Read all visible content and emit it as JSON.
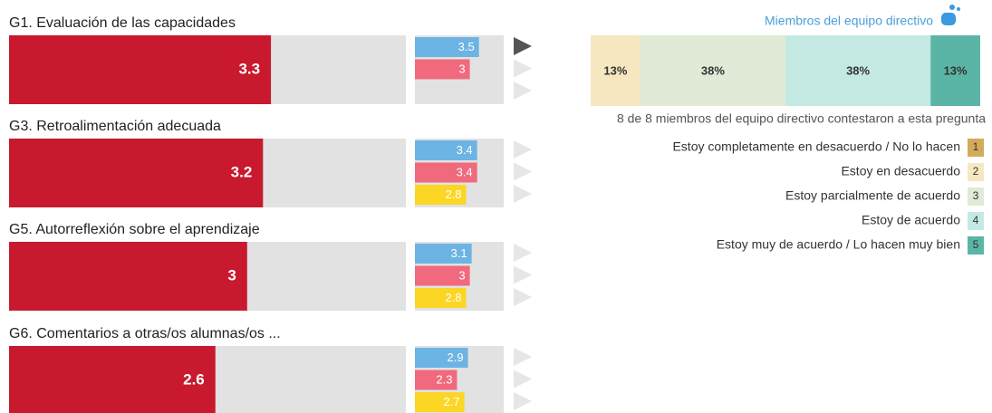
{
  "xlim": [
    0,
    5
  ],
  "score_color": "#c8192f",
  "sub_colors": [
    "#6cb4e4",
    "#f0697d",
    "#fbd625"
  ],
  "groups": [
    {
      "title": "G1. Evaluación de las capacidades",
      "score": 3.3,
      "sub": [
        3.5,
        3
      ]
    },
    {
      "title": "G3. Retroalimentación adecuada",
      "score": 3.2,
      "sub": [
        3.4,
        3.4,
        2.8
      ]
    },
    {
      "title": "G5. Autorreflexión sobre el aprendizaje",
      "score": 3,
      "sub": [
        3.1,
        3,
        2.8
      ]
    },
    {
      "title": "G6. Comentarios a otras/os alumnas/os ...",
      "score": 2.6,
      "sub": [
        2.9,
        2.3,
        2.7
      ]
    }
  ],
  "panel": {
    "title": "Miembros del equipo directivo",
    "segments": [
      {
        "value": 13,
        "label": "13%",
        "color": "#f6e7c1"
      },
      {
        "value": 38,
        "label": "38%",
        "color": "#e0ead6"
      },
      {
        "value": 38,
        "label": "38%",
        "color": "#c4e9e2"
      },
      {
        "value": 13,
        "label": "13%",
        "color": "#5bb5a6"
      }
    ],
    "note": "8 de 8 miembros del equipo directivo contestaron a esta pregunta",
    "legend": [
      {
        "label": "Estoy completamente en desacuerdo / No lo hacen",
        "key": "1",
        "color": "#d4aa5c"
      },
      {
        "label": "Estoy en desacuerdo",
        "key": "2",
        "color": "#f6e7c1"
      },
      {
        "label": "Estoy parcialmente de acuerdo",
        "key": "3",
        "color": "#e0ead6"
      },
      {
        "label": "Estoy de acuerdo",
        "key": "4",
        "color": "#c4e9e2"
      },
      {
        "label": "Estoy muy de acuerdo / Lo hacen muy bien",
        "key": "5",
        "color": "#5bb5a6"
      }
    ]
  }
}
